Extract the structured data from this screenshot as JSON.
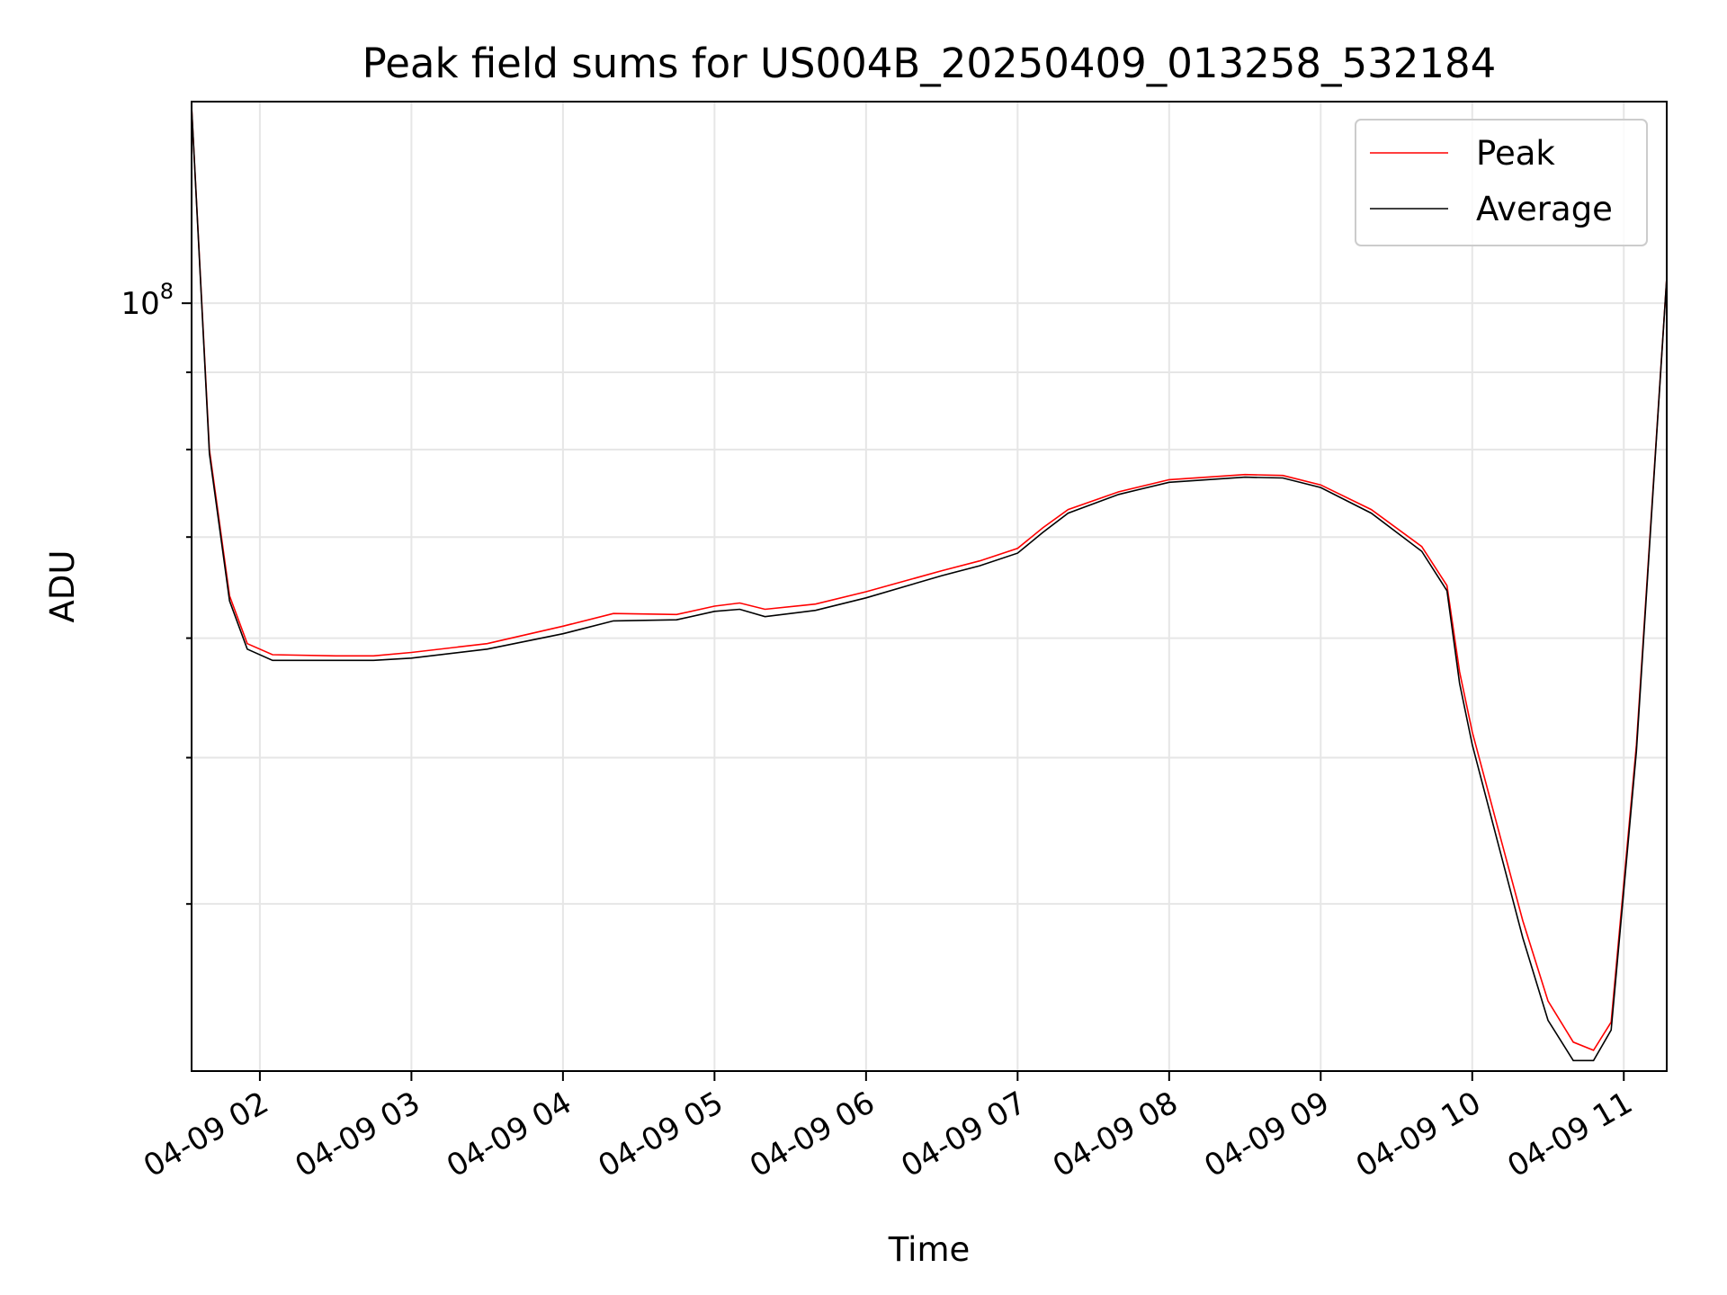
{
  "chart_data": {
    "type": "line",
    "title": "Peak field sums for US004B_20250409_013258_532184",
    "xlabel": "Time",
    "ylabel": "ADU",
    "y_scale": "log",
    "x_range": [
      "2025-04-09T01:32:58",
      "2025-04-09T11:17:00"
    ],
    "ylim": [
      31000000,
      136000000
    ],
    "x_ticks": [
      {
        "label": "04-09 02",
        "value": "2025-04-09T02:00:00"
      },
      {
        "label": "04-09 03",
        "value": "2025-04-09T03:00:00"
      },
      {
        "label": "04-09 04",
        "value": "2025-04-09T04:00:00"
      },
      {
        "label": "04-09 05",
        "value": "2025-04-09T05:00:00"
      },
      {
        "label": "04-09 06",
        "value": "2025-04-09T06:00:00"
      },
      {
        "label": "04-09 07",
        "value": "2025-04-09T07:00:00"
      },
      {
        "label": "04-09 08",
        "value": "2025-04-09T08:00:00"
      },
      {
        "label": "04-09 09",
        "value": "2025-04-09T09:00:00"
      },
      {
        "label": "04-09 10",
        "value": "2025-04-09T10:00:00"
      },
      {
        "label": "04-09 11",
        "value": "2025-04-09T11:00:00"
      }
    ],
    "y_ticks": [
      {
        "label_base": "10",
        "label_exp": "8",
        "value": 100000000
      }
    ],
    "grid": true,
    "legend_position": "top-right",
    "x": [
      "2025-04-09T01:32:58",
      "2025-04-09T01:40:00",
      "2025-04-09T01:48:00",
      "2025-04-09T01:55:00",
      "2025-04-09T02:05:00",
      "2025-04-09T02:30:00",
      "2025-04-09T02:45:00",
      "2025-04-09T03:00:00",
      "2025-04-09T03:30:00",
      "2025-04-09T04:00:00",
      "2025-04-09T04:20:00",
      "2025-04-09T04:45:00",
      "2025-04-09T05:00:00",
      "2025-04-09T05:10:00",
      "2025-04-09T05:20:00",
      "2025-04-09T05:40:00",
      "2025-04-09T06:00:00",
      "2025-04-09T06:30:00",
      "2025-04-09T06:45:00",
      "2025-04-09T07:00:00",
      "2025-04-09T07:10:00",
      "2025-04-09T07:20:00",
      "2025-04-09T07:40:00",
      "2025-04-09T08:00:00",
      "2025-04-09T08:30:00",
      "2025-04-09T08:45:00",
      "2025-04-09T09:00:00",
      "2025-04-09T09:20:00",
      "2025-04-09T09:40:00",
      "2025-04-09T09:50:00",
      "2025-04-09T09:55:00",
      "2025-04-09T10:00:00",
      "2025-04-09T10:10:00",
      "2025-04-09T10:20:00",
      "2025-04-09T10:30:00",
      "2025-04-09T10:40:00",
      "2025-04-09T10:48:00",
      "2025-04-09T10:55:00",
      "2025-04-09T11:05:00",
      "2025-04-09T11:17:00"
    ],
    "series": [
      {
        "name": "Peak",
        "color": "#ff0000",
        "values": [
          135000000,
          80000000,
          64000000,
          59500000,
          58500000,
          58400000,
          58400000,
          58700000,
          59500000,
          61100000,
          62300000,
          62200000,
          63000000,
          63300000,
          62700000,
          63200000,
          64400000,
          66500000,
          67500000,
          68800000,
          71000000,
          73000000,
          75000000,
          76400000,
          77000000,
          76900000,
          75800000,
          73000000,
          69000000,
          65000000,
          57000000,
          52000000,
          45000000,
          39000000,
          34500000,
          32400000,
          32000000,
          33400000,
          51000000,
          104000000
        ]
      },
      {
        "name": "Average",
        "color": "#000000",
        "values": [
          135000000,
          79500000,
          63500000,
          59000000,
          58000000,
          58000000,
          58000000,
          58200000,
          59000000,
          60400000,
          61600000,
          61700000,
          62500000,
          62700000,
          62000000,
          62600000,
          63800000,
          66000000,
          67000000,
          68300000,
          70500000,
          72600000,
          74700000,
          76100000,
          76700000,
          76600000,
          75500000,
          72600000,
          68500000,
          64500000,
          56000000,
          51000000,
          44000000,
          38000000,
          33500000,
          31500000,
          31500000,
          33000000,
          50500000,
          104000000
        ]
      }
    ]
  }
}
